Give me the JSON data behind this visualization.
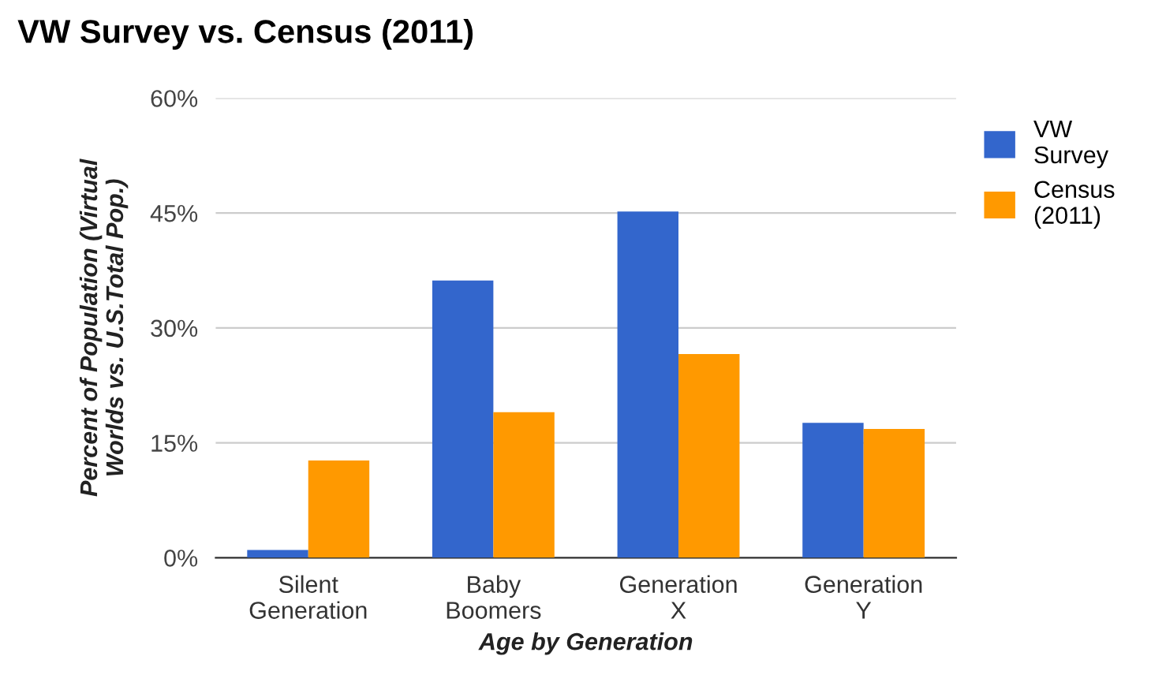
{
  "chart_data": {
    "type": "bar",
    "title": "VW Survey vs. Census (2011)",
    "xlabel": "Age by Generation",
    "ylabel": "Percent of Population (Virtual\nWorlds vs. U.S.Total Pop.)",
    "categories": [
      "Silent\nGeneration",
      "Baby\nBoomers",
      "Generation\nX",
      "Generation\nY"
    ],
    "series": [
      {
        "name": "VW Survey",
        "color": "#3366cc",
        "values": [
          1,
          36.2,
          45.2,
          17.6
        ]
      },
      {
        "name": "Census (2011)",
        "color": "#ff9900",
        "values": [
          12.7,
          19,
          26.6,
          16.8
        ]
      }
    ],
    "ylim": [
      0,
      60
    ],
    "yticks": [
      {
        "value": 0,
        "label": "0%"
      },
      {
        "value": 15,
        "label": "15%"
      },
      {
        "value": 30,
        "label": "30%"
      },
      {
        "value": 45,
        "label": "45%"
      },
      {
        "value": 60,
        "label": "60%"
      }
    ],
    "grid": "y",
    "legend": "right"
  }
}
